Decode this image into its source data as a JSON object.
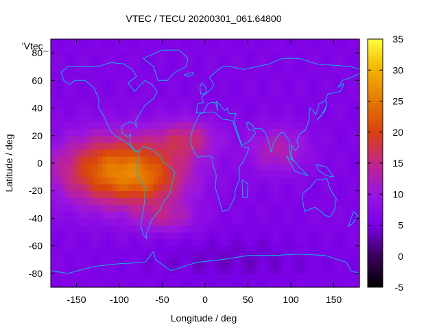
{
  "chart_data": {
    "type": "heatmap",
    "title": "VTEC / TECU 20200301_061.64800",
    "xlabel": "Longitude / deg",
    "ylabel": "Latitude / deg",
    "key_label": "'Vtec_",
    "xlim": [
      -180,
      180
    ],
    "ylim": [
      -90,
      90
    ],
    "x_ticks": [
      -150,
      -100,
      -50,
      0,
      50,
      100,
      150
    ],
    "y_ticks": [
      -80,
      -60,
      -40,
      -20,
      0,
      20,
      40,
      60,
      80
    ],
    "colorbar": {
      "range": [
        -5,
        35
      ],
      "ticks": [
        -5,
        0,
        5,
        10,
        15,
        20,
        25,
        30,
        35
      ],
      "colors": [
        "#000000",
        "#3c005c",
        "#7a00e6",
        "#9a15e0",
        "#c2268a",
        "#d8420e",
        "#e57800",
        "#f2b200",
        "#ffff3a"
      ]
    },
    "background_value": 6,
    "features": [
      {
        "name": "equatorial-anomaly-americas",
        "lon": -100,
        "lat": -5,
        "peak": 25,
        "sigma_lon": 50,
        "sigma_lat": 18
      },
      {
        "name": "south-american-crest",
        "lon": -60,
        "lat": -15,
        "peak": 4,
        "sigma_lon": 30,
        "sigma_lat": 12
      },
      {
        "name": "atlantic-crest-north",
        "lon": -20,
        "lat": 18,
        "peak": 8,
        "sigma_lon": 25,
        "sigma_lat": 10
      },
      {
        "name": "south-atlantic-tail",
        "lon": -45,
        "lat": -40,
        "peak": 6,
        "sigma_lon": 25,
        "sigma_lat": 8
      },
      {
        "name": "indian-ocean-patch",
        "lon": 85,
        "lat": 10,
        "peak": 7,
        "sigma_lon": 25,
        "sigma_lat": 12
      },
      {
        "name": "south-polar-low",
        "lon": 30,
        "lat": -70,
        "peak": -2,
        "sigma_lon": 80,
        "sigma_lat": 12
      }
    ],
    "grid": false,
    "legend": "colorbar-right"
  }
}
